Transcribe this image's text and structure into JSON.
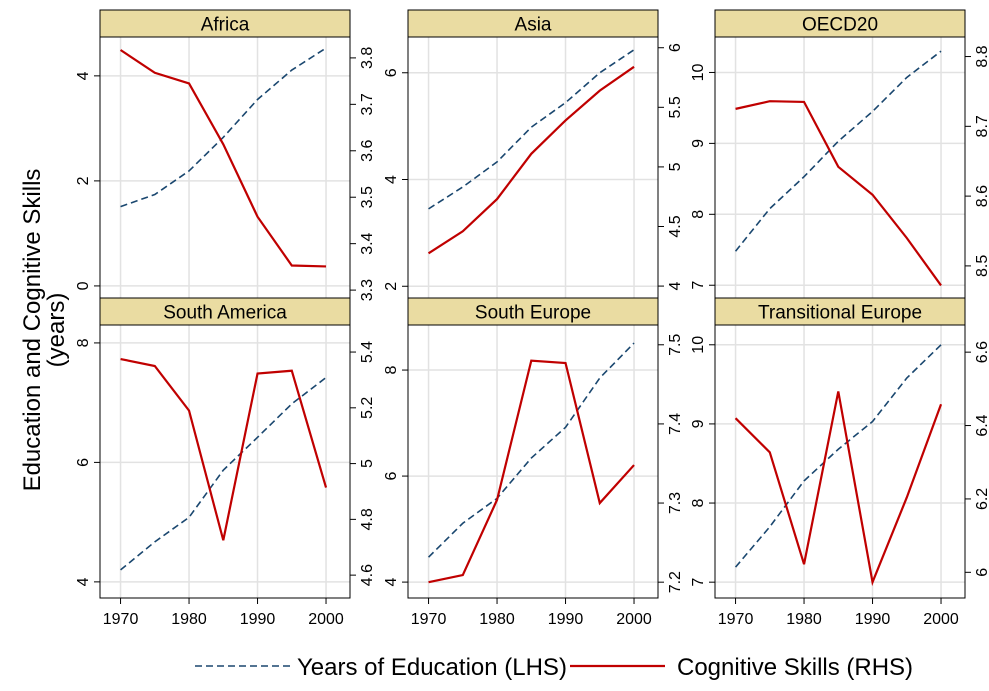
{
  "chart_data": {
    "type": "line",
    "ylabel": [
      "Education and Cognitive Skills",
      "(years)"
    ],
    "x": [
      1970,
      1975,
      1980,
      1985,
      1990,
      1995,
      2000
    ],
    "xlim": [
      1967,
      2003.5
    ],
    "xticks": [
      1970,
      1980,
      1990,
      2000
    ],
    "grid": true,
    "series": [
      {
        "name": "Years of Education (LHS)",
        "color": "#1a476f",
        "dash": true
      },
      {
        "name": "Cognitive Skills (RHS)",
        "color": "#c00000",
        "dash": false
      }
    ],
    "panels": [
      {
        "title": "Africa",
        "ylim": [
          -0.23,
          4.74
        ],
        "yticks": [
          0,
          2,
          4
        ],
        "y2lim": [
          3.283,
          3.845
        ],
        "y2ticks": [
          3.3,
          3.4,
          3.5,
          3.6,
          3.7,
          3.8
        ],
        "series": [
          {
            "values": [
              1.51,
              1.74,
              2.19,
              2.83,
              3.55,
              4.11,
              4.53
            ]
          },
          {
            "values": [
              3.817,
              3.768,
              3.745,
              3.614,
              3.458,
              3.353,
              3.351
            ],
            "axis": "y2"
          }
        ]
      },
      {
        "title": "Asia",
        "ylim": [
          1.78,
          6.67
        ],
        "yticks": [
          2,
          4,
          6
        ],
        "y2lim": [
          3.9,
          6.09
        ],
        "y2ticks": [
          4,
          4.5,
          5,
          5.5,
          6
        ],
        "series": [
          {
            "values": [
              3.45,
              3.86,
              4.33,
              4.98,
              5.44,
              6.0,
              6.43
            ]
          },
          {
            "values": [
              4.275,
              4.46,
              4.73,
              5.11,
              5.39,
              5.64,
              5.84
            ],
            "axis": "y2"
          }
        ]
      },
      {
        "title": "OECD20",
        "ylim": [
          6.82,
          10.5
        ],
        "yticks": [
          7,
          8,
          9,
          10
        ],
        "y2lim": [
          8.454,
          8.828
        ],
        "y2ticks": [
          8.5,
          8.6,
          8.7,
          8.8
        ],
        "series": [
          {
            "values": [
              7.48,
              8.08,
              8.53,
              9.03,
              9.45,
              9.93,
              10.3
            ]
          },
          {
            "values": [
              8.725,
              8.736,
              8.735,
              8.642,
              8.602,
              8.54,
              8.472
            ],
            "axis": "y2"
          }
        ]
      },
      {
        "title": "South America",
        "ylim": [
          3.73,
          8.3
        ],
        "yticks": [
          4,
          6,
          8
        ],
        "y2lim": [
          4.518,
          5.497
        ],
        "y2ticks": [
          4.6,
          4.8,
          5,
          5.2,
          5.4
        ],
        "series": [
          {
            "values": [
              4.2,
              4.67,
              5.08,
              5.87,
              6.42,
              6.98,
              7.42
            ]
          },
          {
            "values": [
              5.375,
              5.35,
              5.19,
              4.725,
              5.323,
              5.333,
              4.914
            ],
            "axis": "y2"
          }
        ]
      },
      {
        "title": "South Europe",
        "ylim": [
          3.7,
          8.85
        ],
        "yticks": [
          4,
          6,
          8
        ],
        "y2lim": [
          7.18,
          7.525
        ],
        "y2ticks": [
          7.2,
          7.3,
          7.4,
          7.5
        ],
        "series": [
          {
            "values": [
              4.47,
              5.11,
              5.58,
              6.34,
              6.92,
              7.85,
              8.51
            ]
          },
          {
            "values": [
              7.2,
              7.209,
              7.304,
              7.48,
              7.477,
              7.3,
              7.348
            ],
            "axis": "y2"
          }
        ]
      },
      {
        "title": "Transitional Europe",
        "ylim": [
          6.8,
          10.25
        ],
        "yticks": [
          7,
          8,
          9,
          10
        ],
        "y2lim": [
          5.93,
          6.674
        ],
        "y2ticks": [
          6,
          6.2,
          6.4,
          6.6
        ],
        "series": [
          {
            "values": [
              7.19,
              7.7,
              8.28,
              8.68,
              9.03,
              9.58,
              10.0
            ]
          },
          {
            "values": [
              6.42,
              6.327,
              6.022,
              6.493,
              5.973,
              6.204,
              6.458
            ],
            "axis": "y2"
          }
        ]
      }
    ]
  }
}
